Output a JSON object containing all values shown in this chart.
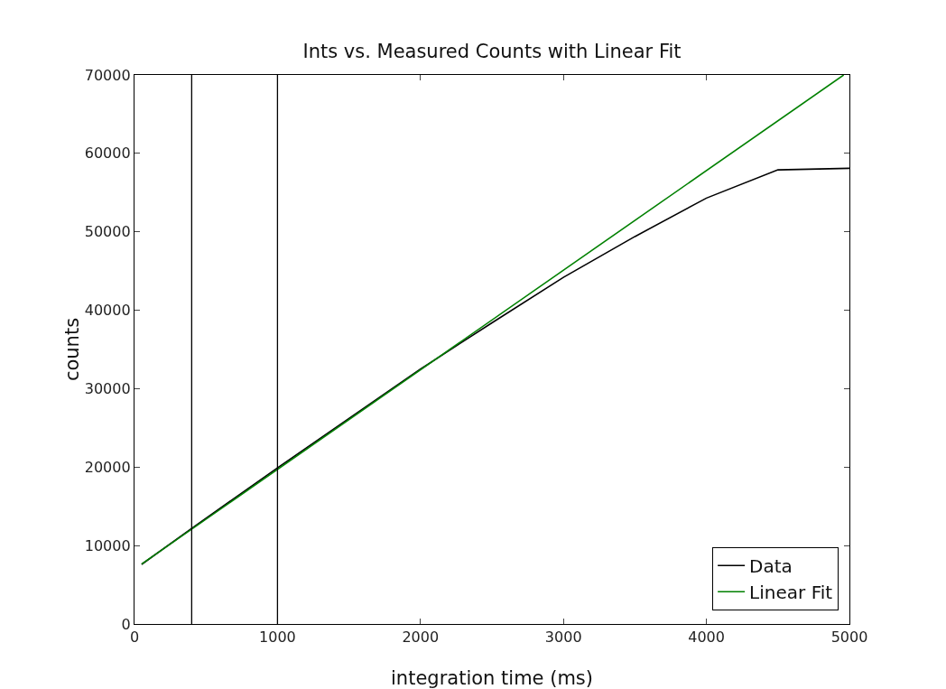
{
  "chart_data": {
    "type": "line",
    "title": "Ints vs. Measured Counts with Linear Fit",
    "xlabel": "integration time (ms)",
    "ylabel": "counts",
    "xlim": [
      0,
      5000
    ],
    "xticks": [
      0,
      1000,
      2000,
      3000,
      4000,
      5000
    ],
    "ylim": [
      0,
      70000
    ],
    "yticks": [
      0,
      10000,
      20000,
      30000,
      40000,
      50000,
      60000,
      70000
    ],
    "grid": false,
    "legend": "bottom right",
    "marker": "none",
    "line_style": "solid",
    "ref_lines": [
      {
        "axis": "x",
        "value": 400,
        "color": "#000000"
      },
      {
        "axis": "x",
        "value": 1000,
        "color": "#000000"
      }
    ],
    "series": [
      {
        "name": "Data",
        "color": "#000000",
        "x": [
          50,
          400,
          1000,
          1500,
          2000,
          2500,
          3000,
          3500,
          4000,
          4500,
          5000
        ],
        "values": [
          7600,
          12200,
          19900,
          26200,
          32500,
          38400,
          44200,
          49400,
          54300,
          57900,
          58100
        ]
      },
      {
        "name": "Linear Fit",
        "color": "#008000",
        "x": [
          50,
          4960
        ],
        "values": [
          7640,
          70000
        ]
      }
    ]
  }
}
